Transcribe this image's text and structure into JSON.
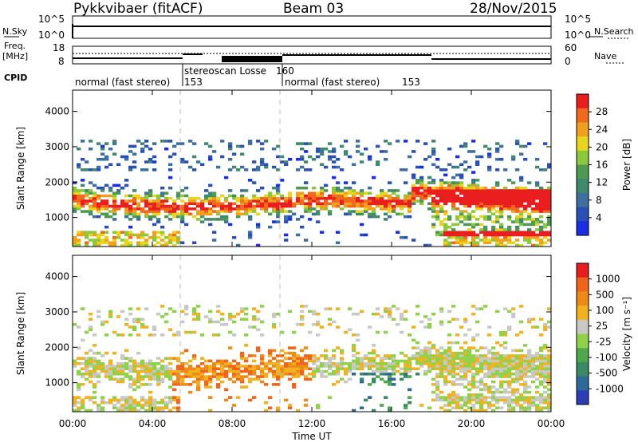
{
  "header": {
    "station": "Pykkvibaer (fitACF)",
    "beam": "Beam 03",
    "date": "28/Nov/2015"
  },
  "side_labels": {
    "nsky": "N.Sky",
    "freq": "Freq.",
    "freq_unit": "[MHz]",
    "cpid": "CPID",
    "nsearch": "N.Search",
    "nave": "Nave"
  },
  "top_axes": {
    "nsky_ticks": [
      "10^5",
      "10^0"
    ],
    "nsearch_ticks": [
      "10^5",
      "10^0"
    ],
    "freq_ticks": [
      "18",
      "8"
    ],
    "nave_ticks": [
      "60",
      "0"
    ]
  },
  "cpid_segments": [
    {
      "label": "normal (fast stereo)",
      "id": "153"
    },
    {
      "label": "stereoscan Losse",
      "id": "160"
    },
    {
      "label": "normal (fast stereo)",
      "id": "153"
    }
  ],
  "colors": {
    "power": [
      "#1a2ee6",
      "#2a4fb5",
      "#3d6fa0",
      "#3f8a6e",
      "#4e9a55",
      "#8cc83c",
      "#e8d61e",
      "#f0a020",
      "#f06a1e",
      "#ea1e1e"
    ],
    "velocity": [
      "#2a3fb5",
      "#2d6a9a",
      "#3a8a66",
      "#4fa84a",
      "#8fd24a",
      "#c8c8c4",
      "#f0b220",
      "#ee8a18",
      "#f0641c",
      "#e61e1e"
    ]
  },
  "chart_data": [
    {
      "type": "heatmap",
      "panel": "power",
      "xlabel": "",
      "ylabel": "Slant Range [km]",
      "yticks": [
        "1000",
        "2000",
        "3000",
        "4000"
      ],
      "ylim": [
        180,
        4600
      ],
      "colorbar_label": "Power [dB]",
      "colorbar_ticks": [
        "28",
        "24",
        "20",
        "16",
        "12",
        "8",
        "4"
      ]
    },
    {
      "type": "heatmap",
      "panel": "velocity",
      "xlabel": "Time UT",
      "ylabel": "Slant Range [km]",
      "yticks": [
        "1000",
        "2000",
        "3000",
        "4000"
      ],
      "xticks": [
        "00:00",
        "04:00",
        "08:00",
        "12:00",
        "16:00",
        "20:00",
        "00:00"
      ],
      "ylim": [
        180,
        4600
      ],
      "colorbar_label": "Velocity [m s⁻¹]",
      "colorbar_ticks": [
        "1000",
        "500",
        "100",
        "25",
        "-25",
        "-100",
        "-500",
        "-1000"
      ]
    }
  ]
}
